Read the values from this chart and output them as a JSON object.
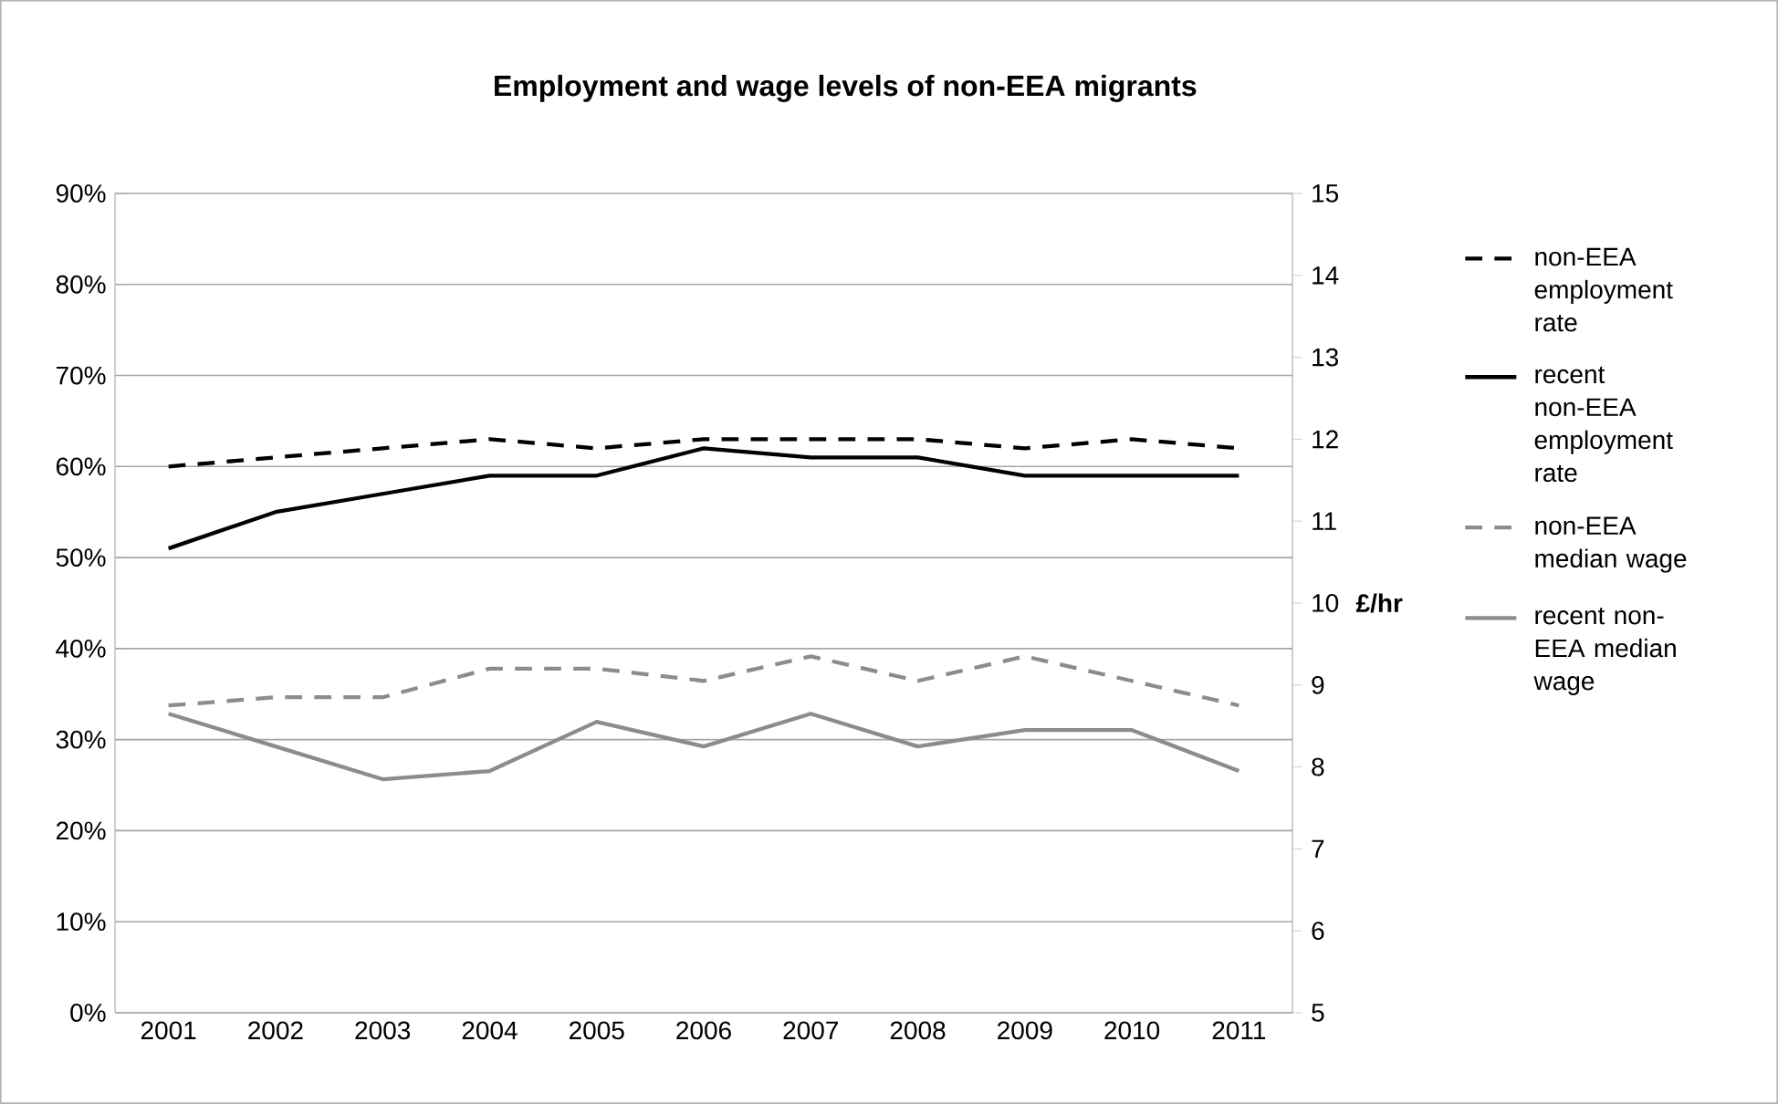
{
  "chart_data": {
    "type": "line",
    "title": "Employment and wage levels of non-EEA migrants",
    "y2label": "£/hr",
    "categories": [
      "2001",
      "2002",
      "2003",
      "2004",
      "2005",
      "2006",
      "2007",
      "2008",
      "2009",
      "2010",
      "2011"
    ],
    "series": [
      {
        "name": "non-EEA employment rate",
        "color": "#000000",
        "line_style": "dashed",
        "values": [
          60,
          61,
          62,
          63,
          62,
          63,
          63,
          63,
          62,
          63,
          62
        ]
      },
      {
        "name": "recent non-EEA employment rate",
        "color": "#000000",
        "line_style": "solid",
        "values": [
          51,
          55,
          57,
          59,
          59,
          62,
          61,
          61,
          59,
          59,
          59
        ]
      },
      {
        "name": "non-EEA median wage",
        "color": "#8c8c8c",
        "line_style": "dashed",
        "axis": "y2",
        "values": [
          8.75,
          8.85,
          8.85,
          9.2,
          9.2,
          9.05,
          9.35,
          9.05,
          9.35,
          9.05,
          8.75
        ]
      },
      {
        "name": "recent non-EEA median wage",
        "color": "#8c8c8c",
        "line_style": "solid",
        "axis": "y2",
        "values": [
          8.65,
          8.25,
          7.85,
          7.95,
          8.55,
          8.25,
          8.65,
          8.25,
          8.45,
          8.45,
          7.95
        ]
      }
    ],
    "ylim": [
      0,
      90
    ],
    "yticks": [
      {
        "value": 0,
        "label": "0%"
      },
      {
        "value": 10,
        "label": "10%"
      },
      {
        "value": 20,
        "label": "20%"
      },
      {
        "value": 30,
        "label": "30%"
      },
      {
        "value": 40,
        "label": "40%"
      },
      {
        "value": 50,
        "label": "50%"
      },
      {
        "value": 60,
        "label": "60%"
      },
      {
        "value": 70,
        "label": "70%"
      },
      {
        "value": 80,
        "label": "80%"
      },
      {
        "value": 90,
        "label": "90%"
      }
    ],
    "y2lim": [
      5,
      15
    ],
    "y2ticks": [
      5,
      6,
      7,
      8,
      9,
      10,
      11,
      12,
      13,
      14,
      15
    ],
    "grid": "y",
    "legend": "right",
    "marker": "none"
  }
}
